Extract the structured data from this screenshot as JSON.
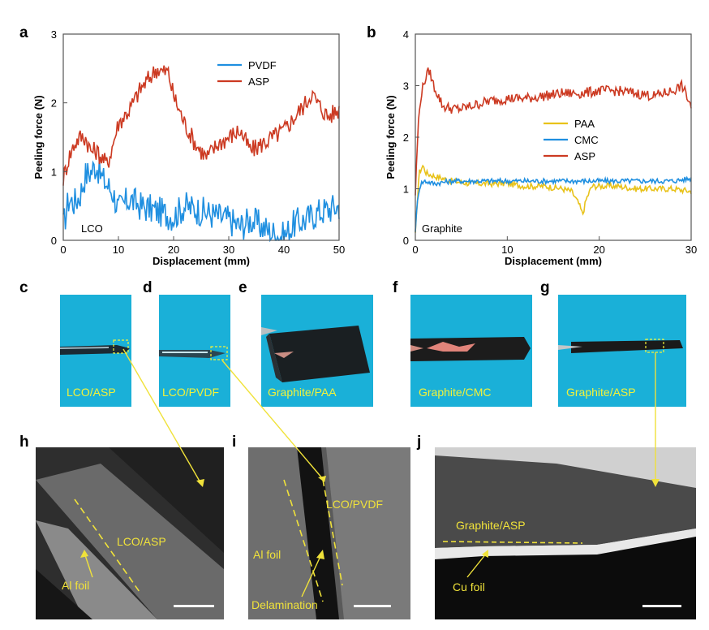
{
  "panel_letters": {
    "a": "a",
    "b": "b",
    "c": "c",
    "d": "d",
    "e": "e",
    "f": "f",
    "g": "g",
    "h": "h",
    "i": "i",
    "j": "j"
  },
  "chart_data": [
    {
      "type": "line",
      "panel": "a",
      "xlabel": "Displacement (mm)",
      "ylabel": "Peeling force (N)",
      "xlim": [
        0,
        50
      ],
      "ylim": [
        0,
        3
      ],
      "xticks": [
        0,
        10,
        20,
        30,
        40,
        50
      ],
      "yticks": [
        0,
        1,
        2,
        3
      ],
      "grid": false,
      "legend": "top-right",
      "annotation": "LCO",
      "series": [
        {
          "name": "PVDF",
          "color": "#1f8fe0",
          "x": [
            0,
            1,
            2,
            3,
            4,
            5,
            6,
            7,
            8,
            9,
            10,
            12,
            14,
            16,
            18,
            20,
            22,
            24,
            26,
            28,
            30,
            32,
            34,
            36,
            38,
            40,
            42,
            44,
            46,
            48,
            50
          ],
          "y": [
            0.2,
            0.6,
            0.55,
            0.65,
            0.95,
            1.0,
            1.1,
            0.9,
            0.8,
            0.7,
            0.45,
            0.6,
            0.5,
            0.45,
            0.4,
            0.35,
            0.5,
            0.45,
            0.4,
            0.35,
            0.3,
            0.2,
            0.3,
            0.2,
            0.1,
            0.05,
            0.25,
            0.3,
            0.4,
            0.45,
            0.5
          ]
        },
        {
          "name": "ASP",
          "color": "#cc3a22",
          "x": [
            0,
            1,
            2,
            3,
            4,
            5,
            6,
            7,
            8,
            9,
            10,
            12,
            14,
            16,
            17,
            18,
            19,
            20,
            21,
            22,
            24,
            26,
            28,
            30,
            32,
            34,
            36,
            38,
            40,
            42,
            44,
            45,
            46,
            48,
            50
          ],
          "y": [
            0.9,
            1.2,
            1.4,
            1.5,
            1.5,
            1.3,
            1.3,
            1.2,
            1.1,
            1.4,
            1.7,
            1.9,
            2.2,
            2.4,
            2.5,
            2.45,
            2.45,
            2.1,
            1.9,
            1.7,
            1.4,
            1.2,
            1.4,
            1.5,
            1.6,
            1.3,
            1.4,
            1.5,
            1.6,
            1.8,
            2.0,
            2.15,
            2.0,
            1.8,
            1.9
          ]
        }
      ]
    },
    {
      "type": "line",
      "panel": "b",
      "xlabel": "Displacement (mm)",
      "ylabel": "Peeling force (N)",
      "xlim": [
        0,
        30
      ],
      "ylim": [
        0,
        4
      ],
      "xticks": [
        0,
        10,
        20,
        30
      ],
      "yticks": [
        0,
        1,
        2,
        3,
        4
      ],
      "grid": false,
      "legend": "center-right",
      "annotation": "Graphite",
      "series": [
        {
          "name": "PAA",
          "color": "#e8c21a",
          "x": [
            0,
            0.4,
            0.8,
            1.2,
            2,
            3,
            4,
            6,
            8,
            10,
            12,
            14,
            16,
            17,
            17.8,
            18.2,
            18.6,
            19.2,
            20,
            22,
            24,
            26,
            28,
            30
          ],
          "y": [
            0.1,
            1.3,
            1.45,
            1.3,
            1.25,
            1.2,
            1.15,
            1.1,
            1.1,
            1.1,
            1.05,
            1.05,
            1.0,
            0.95,
            0.7,
            0.5,
            0.8,
            1.05,
            1.05,
            1.05,
            1.0,
            1.0,
            1.0,
            0.95
          ]
        },
        {
          "name": "CMC",
          "color": "#1f8fe0",
          "x": [
            0,
            0.3,
            0.6,
            1,
            2,
            4,
            6,
            8,
            10,
            12,
            14,
            16,
            18,
            20,
            22,
            24,
            26,
            28,
            30
          ],
          "y": [
            0.2,
            0.9,
            1.1,
            1.15,
            1.1,
            1.15,
            1.15,
            1.15,
            1.15,
            1.15,
            1.15,
            1.15,
            1.15,
            1.15,
            1.15,
            1.15,
            1.15,
            1.15,
            1.2
          ]
        },
        {
          "name": "ASP",
          "color": "#cc3a22",
          "x": [
            0,
            0.3,
            0.6,
            1,
            1.5,
            2,
            2.5,
            3,
            4,
            5,
            6,
            8,
            10,
            12,
            14,
            16,
            18,
            20,
            22,
            24,
            26,
            28,
            29,
            30
          ],
          "y": [
            0.9,
            2.2,
            2.8,
            3.1,
            3.3,
            3.0,
            2.8,
            2.6,
            2.55,
            2.55,
            2.6,
            2.7,
            2.75,
            2.75,
            2.8,
            2.85,
            2.85,
            2.9,
            2.9,
            2.85,
            2.8,
            2.9,
            3.0,
            2.6
          ]
        }
      ]
    }
  ],
  "photos": {
    "c": "LCO/ASP",
    "d": "LCO/PVDF",
    "e": "Graphite/PAA",
    "f": "Graphite/CMC",
    "g": "Graphite/ASP"
  },
  "sem": {
    "h": {
      "coating": "LCO/ASP",
      "foil": "Al foil"
    },
    "i": {
      "coating": "LCO/PVDF",
      "foil": "Al foil",
      "gap": "Delamination"
    },
    "j": {
      "coating": "Graphite/ASP",
      "foil": "Cu foil"
    }
  },
  "colors": {
    "photo_bg": "#1ab0d8",
    "label_yellow": "#f2f23a",
    "pvdf_blue": "#1f8fe0",
    "asp_red": "#cc3a22",
    "paa_yellow": "#e8c21a"
  }
}
